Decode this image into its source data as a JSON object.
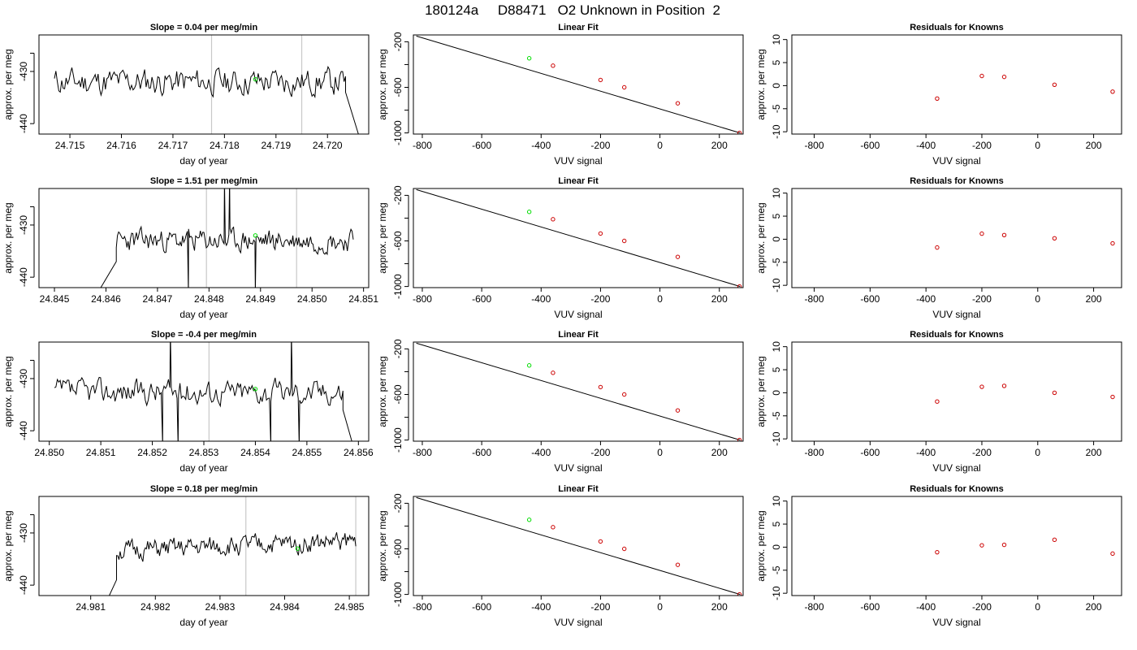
{
  "title": "180124a     D88471   O2 Unknown in Position  2",
  "colors": {
    "trace": "#000000",
    "green": "#00dd00",
    "red": "#cc0000",
    "vline": "#c8c8c8",
    "fitline": "#000000"
  },
  "common": {
    "drift_ylabel": "approx. per meg",
    "drift_xlabel": "day of year",
    "fit_title": "Linear Fit",
    "fit_xlabel": "VUV signal",
    "fit_ylabel": "approx. per meg",
    "res_title": "Residuals for Knowns",
    "res_xlabel": "VUV signal",
    "res_ylabel": "approx. per meg"
  },
  "chart_data": [
    {
      "type": "line",
      "panel": "drift",
      "title": "Slope =  0.04  per meg/min",
      "xlim": [
        24.7144,
        24.7208
      ],
      "xticks": [
        "24.715",
        "24.716",
        "24.717",
        "24.718",
        "24.719",
        "24.720"
      ],
      "ylim": [
        -442,
        -423
      ],
      "yticks": [
        -430,
        -440
      ],
      "vlines": [
        24.71775,
        24.7195
      ],
      "green_point": {
        "x": 24.7186,
        "y": -431.5
      },
      "trace": {
        "x_start": 24.7147,
        "x_end": 24.72035,
        "y_base": -432,
        "amplitude": 2.2,
        "seed": 11,
        "tail": [
          [
            24.72035,
            -434
          ],
          [
            24.7206,
            -442
          ]
        ]
      }
    },
    {
      "type": "line",
      "panel": "fit",
      "xlim": [
        -830,
        280
      ],
      "xticks": [
        -800,
        -600,
        -400,
        -200,
        0,
        200
      ],
      "ylim": [
        -1010,
        -140
      ],
      "yticks": [
        -200,
        -600,
        -1000
      ],
      "line": {
        "x0": -820,
        "y0": -150,
        "x1": 270,
        "y1": -1000
      },
      "red_points": [
        [
          -360,
          -410
        ],
        [
          -200,
          -535
        ],
        [
          -120,
          -600
        ],
        [
          60,
          -740
        ],
        [
          268,
          -1000
        ]
      ],
      "green_point": [
        -440,
        -345
      ]
    },
    {
      "type": "scatter",
      "panel": "residuals",
      "xlim": [
        -880,
        300
      ],
      "xticks": [
        -800,
        -600,
        -400,
        -200,
        0,
        200
      ],
      "ylim": [
        -10.5,
        11
      ],
      "yticks": [
        10,
        5,
        0,
        -5,
        -10
      ],
      "points": [
        [
          -360,
          -2.8
        ],
        [
          -200,
          2.1
        ],
        [
          -120,
          1.9
        ],
        [
          60,
          0.2
        ],
        [
          268,
          -1.3
        ]
      ]
    },
    {
      "type": "line",
      "panel": "drift",
      "title": "Slope =  1.51  per meg/min",
      "xlim": [
        24.8447,
        24.8511
      ],
      "xticks": [
        "24.845",
        "24.846",
        "24.847",
        "24.848",
        "24.849",
        "24.850",
        "24.851"
      ],
      "ylim": [
        -442,
        -423
      ],
      "yticks": [
        -430,
        -440
      ],
      "vlines": [
        24.84795,
        24.8497
      ],
      "green_point": {
        "x": 24.8489,
        "y": -432
      },
      "trace": {
        "x_start": 24.8462,
        "x_end": 24.8508,
        "y_base": -433,
        "amplitude": 1.8,
        "seed": 23,
        "head": [
          [
            24.8459,
            -442
          ],
          [
            24.8462,
            -437
          ]
        ],
        "spikes": [
          [
            24.8476,
            -443
          ],
          [
            24.8483,
            -421
          ],
          [
            24.8484,
            -421
          ],
          [
            24.8489,
            -443
          ]
        ]
      }
    },
    {
      "type": "line",
      "panel": "fit",
      "xlim": [
        -830,
        280
      ],
      "xticks": [
        -800,
        -600,
        -400,
        -200,
        0,
        200
      ],
      "ylim": [
        -1010,
        -140
      ],
      "yticks": [
        -200,
        -600,
        -1000
      ],
      "line": {
        "x0": -820,
        "y0": -150,
        "x1": 270,
        "y1": -1000
      },
      "red_points": [
        [
          -360,
          -410
        ],
        [
          -200,
          -535
        ],
        [
          -120,
          -600
        ],
        [
          60,
          -740
        ],
        [
          268,
          -1000
        ]
      ],
      "green_point": [
        -440,
        -345
      ]
    },
    {
      "type": "scatter",
      "panel": "residuals",
      "xlim": [
        -880,
        300
      ],
      "xticks": [
        -800,
        -600,
        -400,
        -200,
        0,
        200
      ],
      "ylim": [
        -10.5,
        11
      ],
      "yticks": [
        10,
        5,
        0,
        -5,
        -10
      ],
      "points": [
        [
          -360,
          -1.8
        ],
        [
          -200,
          1.2
        ],
        [
          -120,
          0.9
        ],
        [
          60,
          0.2
        ],
        [
          268,
          -0.9
        ]
      ]
    },
    {
      "type": "line",
      "panel": "drift",
      "title": "Slope =  -0.4  per meg/min",
      "xlim": [
        24.8498,
        24.8562
      ],
      "xticks": [
        "24.850",
        "24.851",
        "24.852",
        "24.853",
        "24.854",
        "24.855",
        "24.856"
      ],
      "ylim": [
        -442,
        -423
      ],
      "yticks": [
        -430,
        -440
      ],
      "vlines": [
        24.8531
      ],
      "green_point": {
        "x": 24.854,
        "y": -432
      },
      "trace": {
        "x_start": 24.8501,
        "x_end": 24.8557,
        "y_base": -432.5,
        "amplitude": 2.0,
        "seed": 37,
        "spikes": [
          [
            24.8522,
            -443
          ],
          [
            24.85235,
            -421
          ],
          [
            24.8525,
            -443
          ],
          [
            24.8543,
            -443
          ],
          [
            24.8547,
            -421
          ],
          [
            24.85485,
            -443
          ]
        ],
        "tail": [
          [
            24.8557,
            -436
          ],
          [
            24.8559,
            -443
          ]
        ]
      }
    },
    {
      "type": "line",
      "panel": "fit",
      "xlim": [
        -830,
        280
      ],
      "xticks": [
        -800,
        -600,
        -400,
        -200,
        0,
        200
      ],
      "ylim": [
        -1010,
        -140
      ],
      "yticks": [
        -200,
        -600,
        -1000
      ],
      "line": {
        "x0": -820,
        "y0": -150,
        "x1": 270,
        "y1": -1000
      },
      "red_points": [
        [
          -360,
          -410
        ],
        [
          -200,
          -535
        ],
        [
          -120,
          -600
        ],
        [
          60,
          -740
        ],
        [
          268,
          -1000
        ]
      ],
      "green_point": [
        -440,
        -345
      ]
    },
    {
      "type": "scatter",
      "panel": "residuals",
      "xlim": [
        -880,
        300
      ],
      "xticks": [
        -800,
        -600,
        -400,
        -200,
        0,
        200
      ],
      "ylim": [
        -10.5,
        11
      ],
      "yticks": [
        10,
        5,
        0,
        -5,
        -10
      ],
      "points": [
        [
          -360,
          -1.9
        ],
        [
          -200,
          1.3
        ],
        [
          -120,
          1.5
        ],
        [
          60,
          0.0
        ],
        [
          268,
          -0.9
        ]
      ]
    },
    {
      "type": "line",
      "panel": "drift",
      "title": "Slope =  0.18  per meg/min",
      "xlim": [
        24.9802,
        24.9853
      ],
      "xticks": [
        "24.981",
        "24.982",
        "24.983",
        "24.984",
        "24.985"
      ],
      "ylim": [
        -442,
        -423
      ],
      "yticks": [
        -430,
        -440
      ],
      "vlines": [
        24.9834,
        24.9851
      ],
      "green_point": {
        "x": 24.9842,
        "y": -433
      },
      "trace": {
        "x_start": 24.9814,
        "x_end": 24.9851,
        "y_base": -433.5,
        "amplitude": 1.6,
        "seed": 51,
        "head": [
          [
            24.98125,
            -443
          ],
          [
            24.9814,
            -439
          ]
        ],
        "drift": 2.0
      }
    },
    {
      "type": "line",
      "panel": "fit",
      "xlim": [
        -830,
        280
      ],
      "xticks": [
        -800,
        -600,
        -400,
        -200,
        0,
        200
      ],
      "ylim": [
        -1010,
        -140
      ],
      "yticks": [
        -200,
        -600,
        -1000
      ],
      "line": {
        "x0": -820,
        "y0": -150,
        "x1": 270,
        "y1": -1000
      },
      "red_points": [
        [
          -360,
          -410
        ],
        [
          -200,
          -535
        ],
        [
          -120,
          -600
        ],
        [
          60,
          -740
        ],
        [
          268,
          -1000
        ]
      ],
      "green_point": [
        -440,
        -345
      ]
    },
    {
      "type": "scatter",
      "panel": "residuals",
      "xlim": [
        -880,
        300
      ],
      "xticks": [
        -800,
        -600,
        -400,
        -200,
        0,
        200
      ],
      "ylim": [
        -10.5,
        11
      ],
      "yticks": [
        10,
        5,
        0,
        -5,
        -10
      ],
      "points": [
        [
          -360,
          -1.1
        ],
        [
          -200,
          0.4
        ],
        [
          -120,
          0.5
        ],
        [
          60,
          1.6
        ],
        [
          268,
          -1.4
        ]
      ]
    }
  ]
}
